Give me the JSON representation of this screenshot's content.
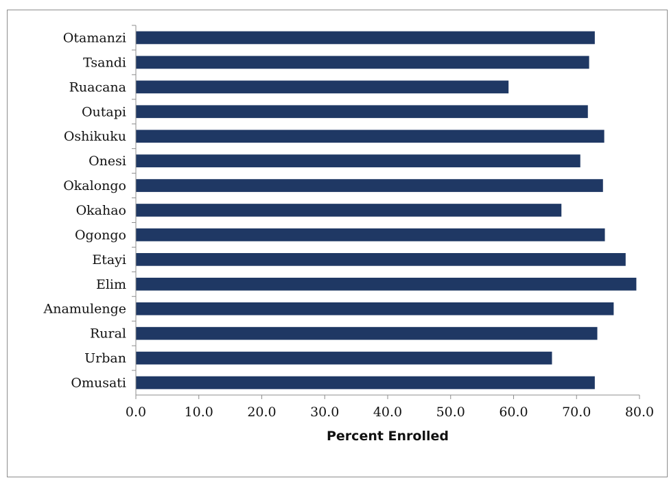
{
  "figure": {
    "caption_fragment": ""
  },
  "chart_data": {
    "type": "bar",
    "orientation": "horizontal",
    "categories": [
      "Otamanzi",
      "Tsandi",
      "Ruacana",
      "Outapi",
      "Oshikuku",
      "Onesi",
      "Okalongo",
      "Okahao",
      "Ogongo",
      "Etayi",
      "Elim",
      "Anamulenge",
      "Rural",
      "Urban",
      "Omusati"
    ],
    "values": [
      72.9,
      72.0,
      59.2,
      71.8,
      74.4,
      70.6,
      74.2,
      67.6,
      74.5,
      77.8,
      79.5,
      75.9,
      73.3,
      66.1,
      72.9
    ],
    "xlabel": "Percent Enrolled",
    "ylabel": "",
    "xlim": [
      0,
      80
    ],
    "xticks": [
      "0.0",
      "10.0",
      "20.0",
      "30.0",
      "40.0",
      "50.0",
      "60.0",
      "70.0",
      "80.0"
    ],
    "bar_color": "#1f3864",
    "grid": false,
    "legend": "none"
  }
}
